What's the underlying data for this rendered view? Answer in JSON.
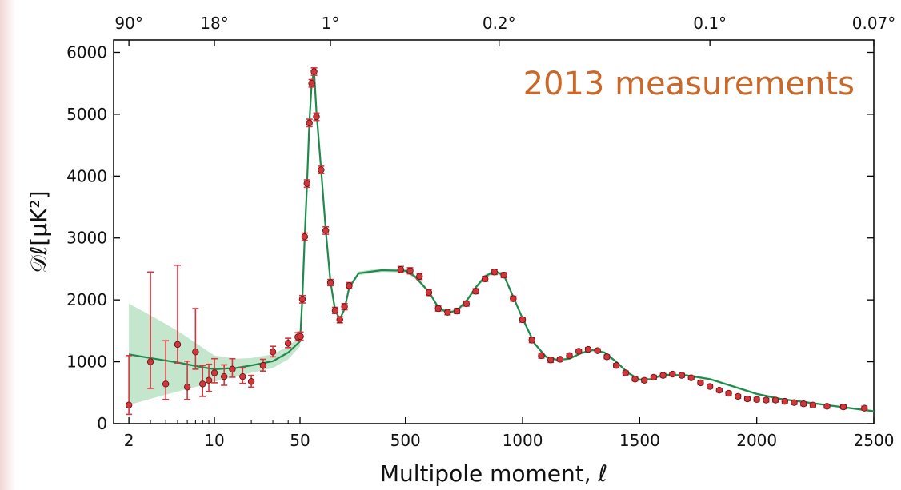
{
  "colors": {
    "curve": "#1f8a4c",
    "band": "#bde3c8",
    "point": "#d2363a",
    "errorbar": "#d8343d",
    "annotation": "#c8692b",
    "edge_strip": "#f3d6d6"
  },
  "chart_data": {
    "type": "scatter",
    "title": "",
    "xlabel": "Multipole moment, ℓ",
    "ylabel": "𝒟ℓ[μK²]",
    "annotation": "2013 measurements",
    "ylim": [
      0,
      6200
    ],
    "y_ticks": [
      "0",
      "1000",
      "2000",
      "3000",
      "4000",
      "5000",
      "6000"
    ],
    "x_scale": "piecewise: log for ℓ < 50, linear for ℓ ≥ 50",
    "xlim": [
      1.5,
      2500
    ],
    "x_ticks": [
      "2",
      "10",
      "50",
      "500",
      "1000",
      "1500",
      "2000",
      "2500"
    ],
    "top_axis_label_values": [
      "90°",
      "18°",
      "1°",
      "0.2°",
      "0.1°",
      "0.07°"
    ],
    "grid": false,
    "series": [
      {
        "name": "",
        "kind": "points_with_error",
        "x": [
          2,
          3,
          4,
          5,
          6,
          7,
          8,
          9,
          10,
          12,
          14,
          17,
          20,
          25,
          30,
          40,
          48,
          52,
          60,
          70,
          80,
          90,
          100,
          110,
          120,
          140,
          160,
          180,
          200,
          220,
          240,
          260,
          480,
          520,
          560,
          600,
          640,
          680,
          720,
          760,
          800,
          840,
          880,
          920,
          960,
          1000,
          1040,
          1080,
          1120,
          1160,
          1200,
          1240,
          1280,
          1320,
          1360,
          1400,
          1440,
          1480,
          1520,
          1560,
          1600,
          1640,
          1680,
          1720,
          1760,
          1800,
          1840,
          1880,
          1920,
          1960,
          2000,
          2040,
          2080,
          2120,
          2160,
          2200,
          2240,
          2300,
          2370,
          2460
        ],
        "y": [
          300,
          1000,
          640,
          1280,
          590,
          1160,
          640,
          700,
          820,
          760,
          880,
          760,
          680,
          940,
          1160,
          1300,
          1400,
          1410,
          2010,
          3020,
          3880,
          4860,
          5500,
          5690,
          4960,
          4100,
          3120,
          2280,
          1830,
          1680,
          1890,
          2230,
          2490,
          2470,
          2380,
          2120,
          1860,
          1800,
          1820,
          1940,
          2140,
          2340,
          2450,
          2400,
          2020,
          1680,
          1350,
          1100,
          1030,
          1040,
          1100,
          1170,
          1200,
          1180,
          1080,
          940,
          820,
          720,
          700,
          750,
          780,
          800,
          780,
          740,
          660,
          600,
          540,
          490,
          440,
          400,
          390,
          380,
          380,
          360,
          340,
          320,
          300,
          280,
          270,
          250
        ],
        "err_minus": [
          150,
          430,
          250,
          300,
          200,
          280,
          200,
          180,
          160,
          140,
          130,
          110,
          90,
          90,
          80,
          70,
          60,
          60,
          60,
          60,
          60,
          60,
          60,
          60,
          60,
          60,
          60,
          50,
          50,
          50,
          50,
          50,
          50,
          50,
          50,
          50,
          40,
          40,
          40,
          40,
          40,
          40,
          40,
          40,
          40,
          40,
          40,
          40,
          40,
          30,
          30,
          30,
          30,
          30,
          30,
          30,
          30,
          30,
          30,
          30,
          30,
          30,
          30,
          30,
          30,
          30,
          30,
          30,
          30,
          30,
          30,
          30,
          30,
          30,
          30,
          30,
          30,
          30,
          30,
          30
        ],
        "err_plus": [
          800,
          1450,
          700,
          1280,
          420,
          700,
          300,
          260,
          230,
          190,
          170,
          140,
          100,
          100,
          90,
          80,
          70,
          70,
          60,
          60,
          60,
          60,
          60,
          60,
          60,
          60,
          60,
          50,
          50,
          50,
          50,
          50,
          50,
          50,
          50,
          50,
          40,
          40,
          40,
          40,
          40,
          40,
          40,
          40,
          40,
          40,
          40,
          40,
          40,
          30,
          30,
          30,
          30,
          30,
          30,
          30,
          30,
          30,
          30,
          30,
          30,
          30,
          30,
          30,
          30,
          30,
          30,
          30,
          30,
          30,
          30,
          30,
          30,
          30,
          30,
          30,
          30,
          30,
          30,
          30
        ]
      },
      {
        "name": "",
        "kind": "model_curve",
        "x": [
          2,
          3,
          5,
          8,
          10,
          15,
          20,
          30,
          40,
          50,
          60,
          70,
          80,
          90,
          100,
          110,
          120,
          140,
          160,
          180,
          200,
          220,
          240,
          260,
          300,
          400,
          500,
          540,
          600,
          640,
          680,
          720,
          760,
          800,
          840,
          880,
          920,
          960,
          1000,
          1050,
          1100,
          1150,
          1200,
          1250,
          1300,
          1350,
          1400,
          1450,
          1500,
          1550,
          1600,
          1700,
          1800,
          1900,
          2000,
          2100,
          2200,
          2300,
          2400,
          2500
        ],
        "y": [
          1120,
          1060,
          990,
          910,
          880,
          900,
          940,
          1010,
          1150,
          1330,
          2010,
          3020,
          3880,
          4870,
          5500,
          5700,
          5050,
          4120,
          3120,
          2300,
          1830,
          1690,
          1850,
          2200,
          2430,
          2480,
          2470,
          2380,
          2130,
          1880,
          1790,
          1830,
          1980,
          2200,
          2380,
          2460,
          2400,
          2050,
          1700,
          1300,
          1080,
          1030,
          1050,
          1140,
          1190,
          1150,
          1000,
          820,
          710,
          720,
          790,
          780,
          720,
          600,
          480,
          400,
          350,
          300,
          250,
          200
        ],
        "band_lower": [
          300,
          400,
          520,
          620,
          680,
          760,
          820,
          900,
          1040,
          1250,
          1950,
          2950,
          3820,
          4800,
          5420,
          5620,
          4980,
          4060,
          3070,
          2260,
          1800,
          1660,
          1820,
          2170,
          2400,
          2450,
          2440,
          2350,
          2100,
          1850,
          1760,
          1800,
          1950,
          2170,
          2350,
          2430,
          2370,
          2020,
          1680,
          1280,
          1060,
          1010,
          1030,
          1120,
          1170,
          1130,
          980,
          800,
          690,
          700,
          770,
          760,
          700,
          580,
          460,
          385,
          335,
          285,
          235,
          185
        ],
        "band_upper": [
          1940,
          1750,
          1500,
          1230,
          1100,
          1050,
          1060,
          1120,
          1250,
          1410,
          2070,
          3090,
          3940,
          4940,
          5580,
          5780,
          5120,
          4180,
          3170,
          2340,
          1860,
          1720,
          1880,
          2230,
          2460,
          2510,
          2500,
          2410,
          2160,
          1910,
          1820,
          1860,
          2010,
          2230,
          2410,
          2490,
          2430,
          2080,
          1720,
          1320,
          1100,
          1050,
          1070,
          1160,
          1210,
          1170,
          1020,
          840,
          730,
          740,
          810,
          800,
          740,
          620,
          500,
          415,
          365,
          315,
          265,
          215
        ]
      }
    ]
  }
}
